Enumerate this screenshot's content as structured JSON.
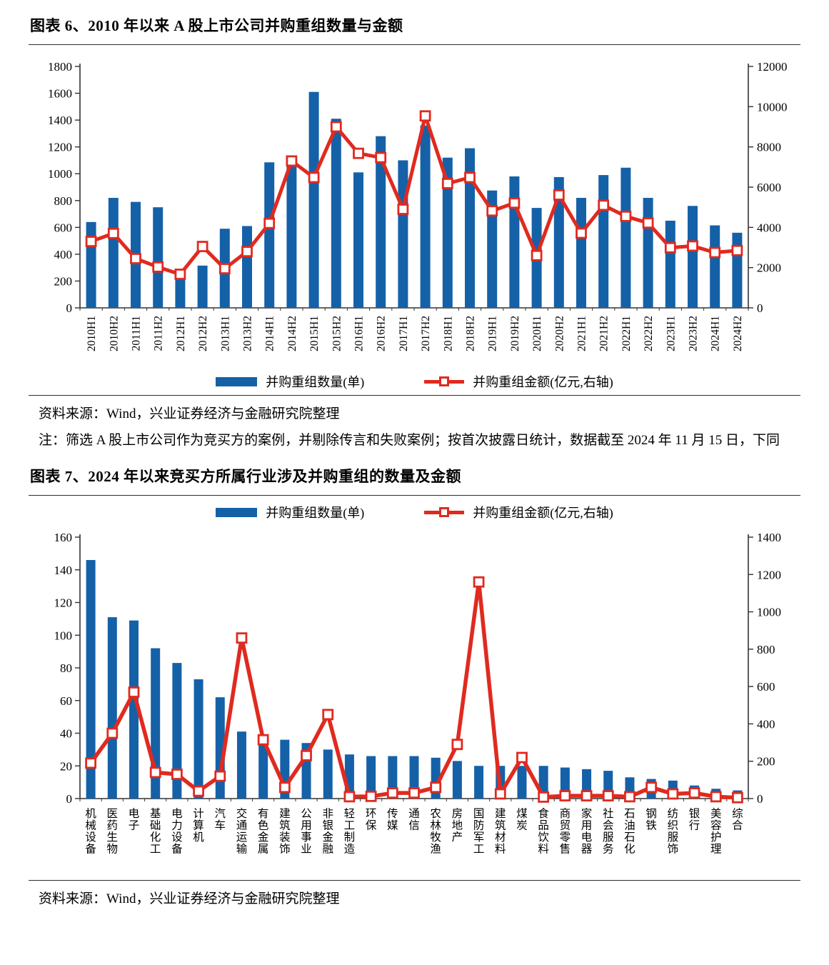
{
  "colors": {
    "bar_blue": "#1561a8",
    "line_red": "#e02a1f",
    "marker_fill": "#ffffff",
    "axis": "#333333",
    "rule": "#2e2e2e"
  },
  "figure6": {
    "title": "图表 6、2010 年以来 A 股上市公司并购重组数量与金额",
    "source": "资料来源：Wind，兴业证券经济与金融研究院整理",
    "note": "注：筛选 A 股上市公司作为竞买方的案例，并剔除传言和失败案例；按首次披露日统计，数据截至 2024 年 11 月 15 日，下同"
  },
  "figure7": {
    "title": "图表 7、2024 年以来竞买方所属行业涉及并购重组的数量及金额",
    "source": "资料来源：Wind，兴业证券经济与金融研究院整理"
  },
  "chart_data": [
    {
      "id": "figure6",
      "type": "bar",
      "combo": "bar+line, dual axis",
      "title": "2010年以来A股上市公司并购重组数量与金额",
      "categories": [
        "2010H1",
        "2010H2",
        "2011H1",
        "2011H2",
        "2012H1",
        "2012H2",
        "2013H1",
        "2013H2",
        "2014H1",
        "2014H2",
        "2015H1",
        "2015H2",
        "2016H1",
        "2016H2",
        "2017H1",
        "2017H2",
        "2018H1",
        "2018H2",
        "2019H1",
        "2019H2",
        "2020H1",
        "2020H2",
        "2021H1",
        "2021H2",
        "2022H1",
        "2022H2",
        "2023H1",
        "2023H2",
        "2024H1",
        "2024H2"
      ],
      "series": [
        {
          "name": "并购重组数量(单)",
          "type": "bar",
          "axis": "left",
          "values": [
            640,
            820,
            790,
            750,
            230,
            315,
            590,
            610,
            1085,
            1080,
            1610,
            1410,
            1010,
            1280,
            1100,
            1360,
            1120,
            1190,
            875,
            980,
            745,
            975,
            820,
            990,
            1045,
            820,
            650,
            760,
            615,
            560
          ]
        },
        {
          "name": "并购重组金额(亿元,右轴)",
          "type": "line",
          "axis": "right",
          "values": [
            3300,
            3700,
            2450,
            2030,
            1670,
            3050,
            1950,
            2800,
            4200,
            7300,
            6480,
            9000,
            7680,
            7470,
            4900,
            9540,
            6180,
            6480,
            4820,
            5210,
            2600,
            5610,
            3710,
            5100,
            4550,
            4220,
            2990,
            3075,
            2750,
            2850
          ]
        }
      ],
      "left_axis": {
        "min": 0,
        "max": 1800,
        "step": 200
      },
      "right_axis": {
        "min": 0,
        "max": 12000,
        "step": 2000
      },
      "grid": false,
      "legend_position": "bottom"
    },
    {
      "id": "figure7",
      "type": "bar",
      "combo": "bar+line, dual axis",
      "title": "2024年以来竞买方所属行业涉及并购重组的数量及金额",
      "categories": [
        "机械设备",
        "医药生物",
        "电子",
        "基础化工",
        "电力设备",
        "计算机",
        "汽车",
        "交通运输",
        "有色金属",
        "建筑装饰",
        "公用事业",
        "非银金融",
        "轻工制造",
        "环保",
        "传媒",
        "通信",
        "农林牧渔",
        "房地产",
        "国防军工",
        "建筑材料",
        "煤炭",
        "食品饮料",
        "商贸零售",
        "家用电器",
        "社会服务",
        "石油石化",
        "钢铁",
        "纺织服饰",
        "银行",
        "美容护理",
        "综合"
      ],
      "series": [
        {
          "name": "并购重组数量(单)",
          "type": "bar",
          "axis": "left",
          "values": [
            146,
            111,
            109,
            92,
            83,
            73,
            62,
            41,
            37,
            36,
            34,
            30,
            27,
            26,
            26,
            26,
            25,
            23,
            20,
            20,
            20,
            20,
            19,
            18,
            17,
            13,
            12,
            11,
            8,
            6,
            5
          ]
        },
        {
          "name": "并购重组金额(亿元,右轴)",
          "type": "line",
          "axis": "right",
          "values": [
            190,
            350,
            570,
            140,
            130,
            40,
            120,
            860,
            315,
            60,
            230,
            450,
            10,
            12,
            30,
            30,
            60,
            290,
            1160,
            25,
            220,
            8,
            15,
            15,
            15,
            10,
            60,
            25,
            30,
            10,
            5
          ]
        }
      ],
      "left_axis": {
        "min": 0,
        "max": 160,
        "step": 20
      },
      "right_axis": {
        "min": 0,
        "max": 1400,
        "step": 200
      },
      "grid": false,
      "legend_position": "top"
    }
  ]
}
